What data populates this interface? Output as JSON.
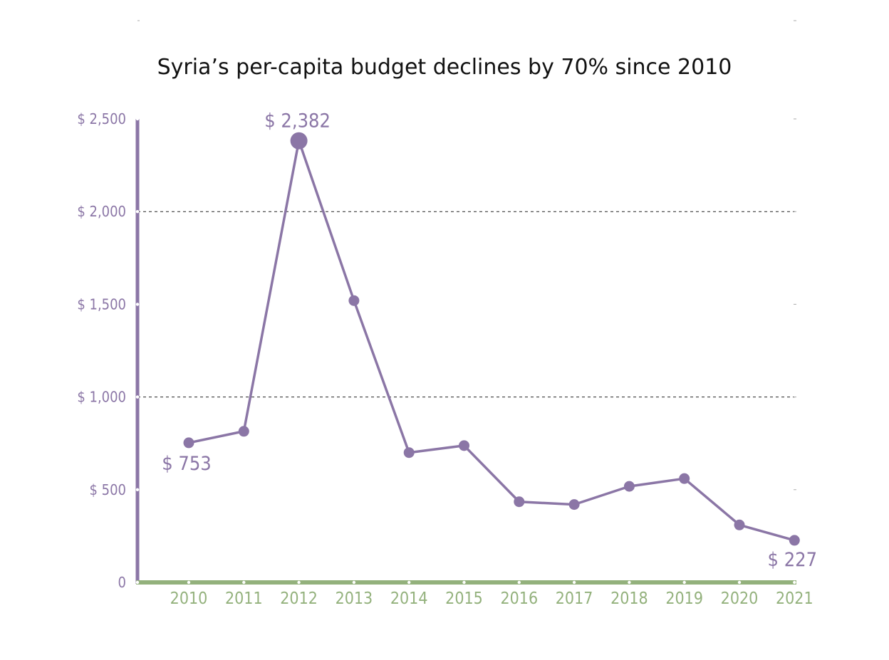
{
  "chart_data": {
    "type": "line",
    "title": "Syria’s per-capita budget declines by 70% since 2010",
    "x": [
      "2010",
      "2011",
      "2012",
      "2013",
      "2014",
      "2015",
      "2016",
      "2017",
      "2018",
      "2019",
      "2020",
      "2021"
    ],
    "series": [
      {
        "values": [
          753,
          815,
          2382,
          1520,
          700,
          738,
          435,
          420,
          518,
          560,
          310,
          227
        ]
      }
    ],
    "ylim": [
      0,
      2500
    ],
    "yticks": [
      0,
      500,
      1000,
      1500,
      2000,
      2500
    ],
    "ytick_labels": [
      "0",
      "$ 500",
      "$ 1,000",
      "$ 1,500",
      "$ 2,000",
      "$ 2,500"
    ],
    "gridlines": [
      1000,
      2000
    ],
    "grid_style": "dashed",
    "data_labels": [
      {
        "index": 0,
        "text": "$ 753"
      },
      {
        "index": 2,
        "text": "$ 2,382"
      },
      {
        "index": 11,
        "text": "$ 227"
      }
    ],
    "colors": {
      "line": "#8B76A6",
      "y_axis": "#8B76A6",
      "x_axis": "#93B17C",
      "ytick_text": "#8B76A6",
      "xtick_text": "#93B17C",
      "title": "#111111",
      "grid": "#222222"
    }
  }
}
